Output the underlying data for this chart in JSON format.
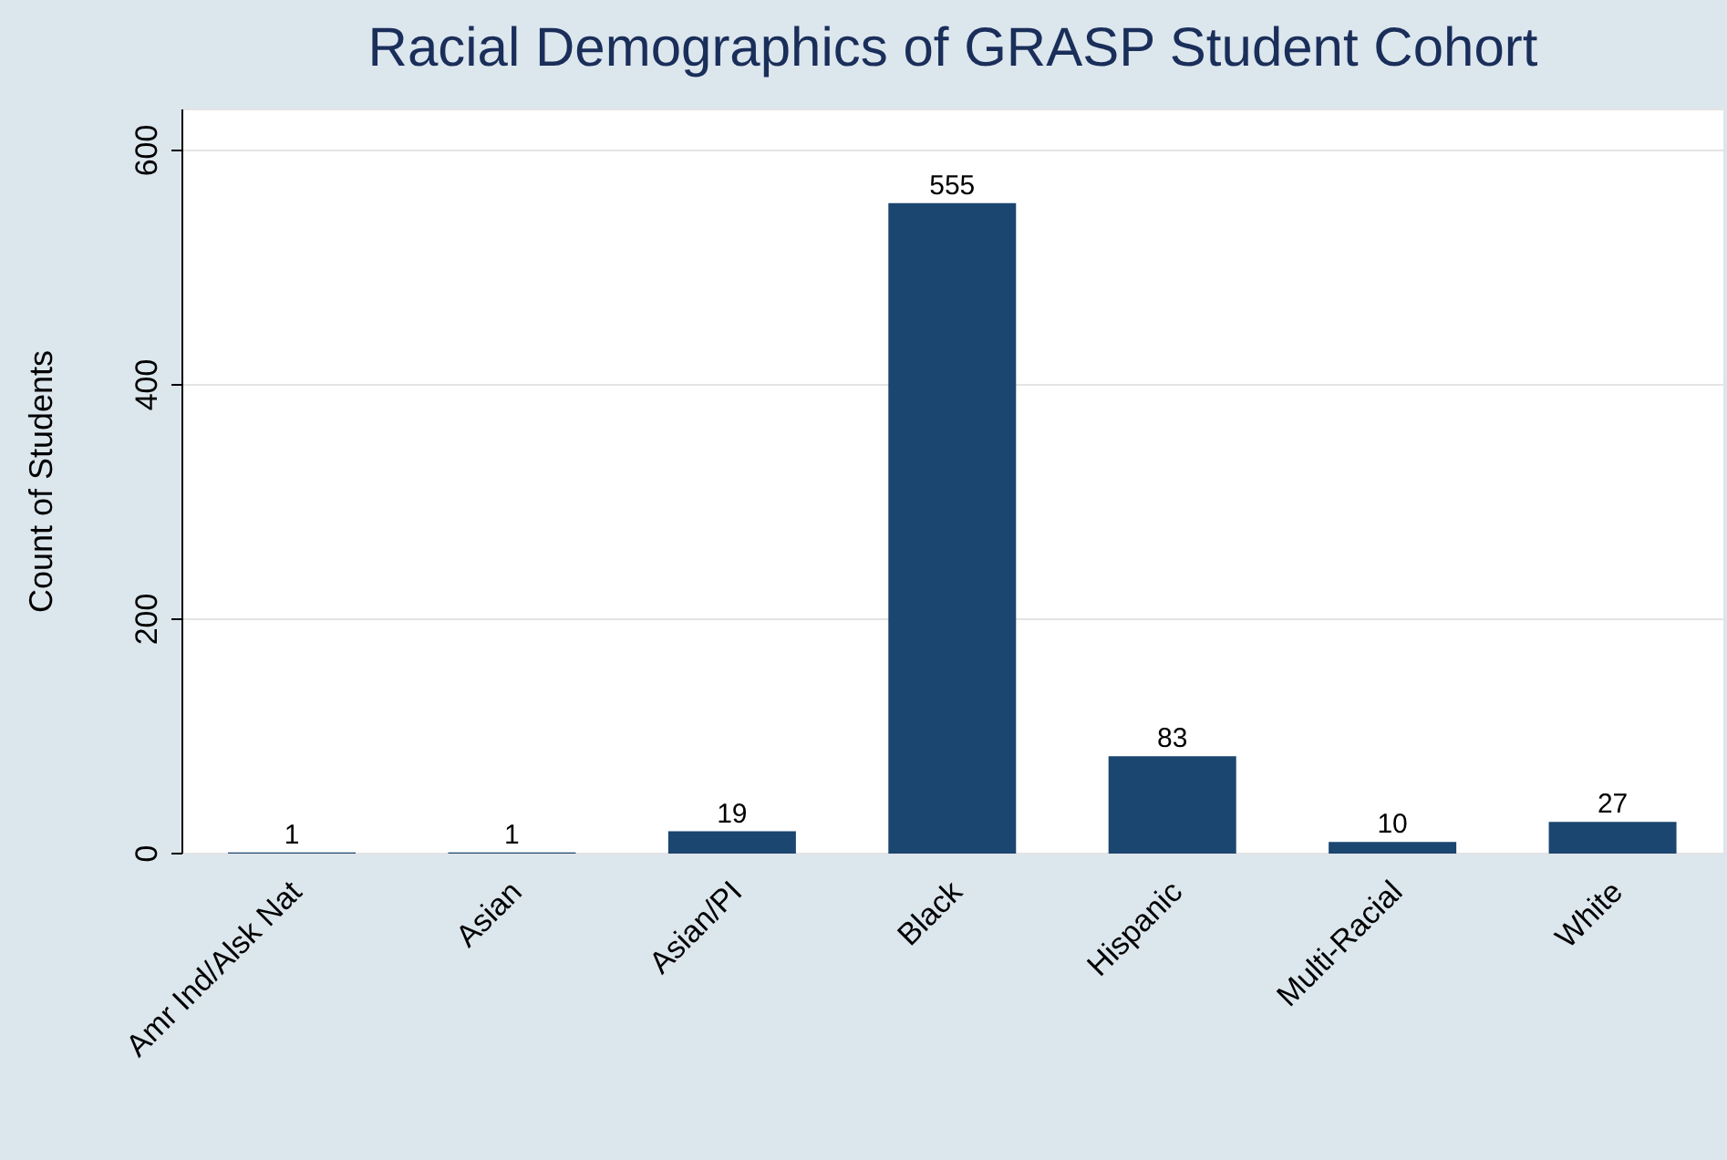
{
  "chart_data": {
    "type": "bar",
    "title": "Racial Demographics of GRASP Student Cohort",
    "ylabel": "Count of Students",
    "categories": [
      "Amr Ind/Alsk Nat",
      "Asian",
      "Asian/PI",
      "Black",
      "Hispanic",
      "Multi-Racial",
      "White"
    ],
    "values": [
      1,
      1,
      19,
      555,
      83,
      10,
      27
    ],
    "color": "#1a4670",
    "ylim": [
      0,
      635
    ],
    "yticks": [
      0,
      200,
      400,
      600
    ],
    "grid": "y",
    "data_labels": true
  }
}
